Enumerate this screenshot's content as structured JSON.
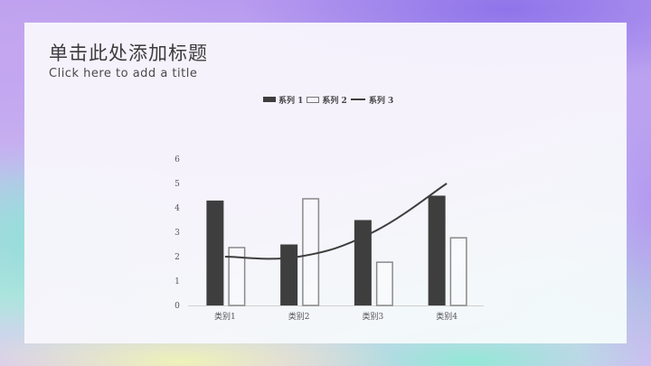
{
  "slide": {
    "title": "单击此处添加标题",
    "subtitle": "Click here to add a title"
  },
  "legend": [
    {
      "label": "系列 1",
      "style": "solid"
    },
    {
      "label": "系列 2",
      "style": "outline"
    },
    {
      "label": "系列 3",
      "style": "line"
    }
  ],
  "colors": {
    "series1": "#3e3e3e",
    "series2_stroke": "#8a8a8a",
    "series3": "#3e3e3e",
    "axis": "#d0d0d0"
  },
  "chart_data": {
    "type": "bar",
    "title": "",
    "xlabel": "",
    "ylabel": "",
    "categories": [
      "类别1",
      "类别2",
      "类别3",
      "类别4"
    ],
    "series": [
      {
        "name": "系列 1",
        "type": "bar",
        "values": [
          4.3,
          2.5,
          3.5,
          4.5
        ]
      },
      {
        "name": "系列 2",
        "type": "bar",
        "values": [
          2.4,
          4.4,
          1.8,
          2.8
        ]
      },
      {
        "name": "系列 3",
        "type": "line",
        "values": [
          2,
          2,
          3,
          5
        ]
      }
    ],
    "ylim": [
      0,
      6
    ],
    "yticks": [
      0,
      1,
      2,
      3,
      4,
      5,
      6
    ],
    "grid": false,
    "legend_position": "top"
  }
}
